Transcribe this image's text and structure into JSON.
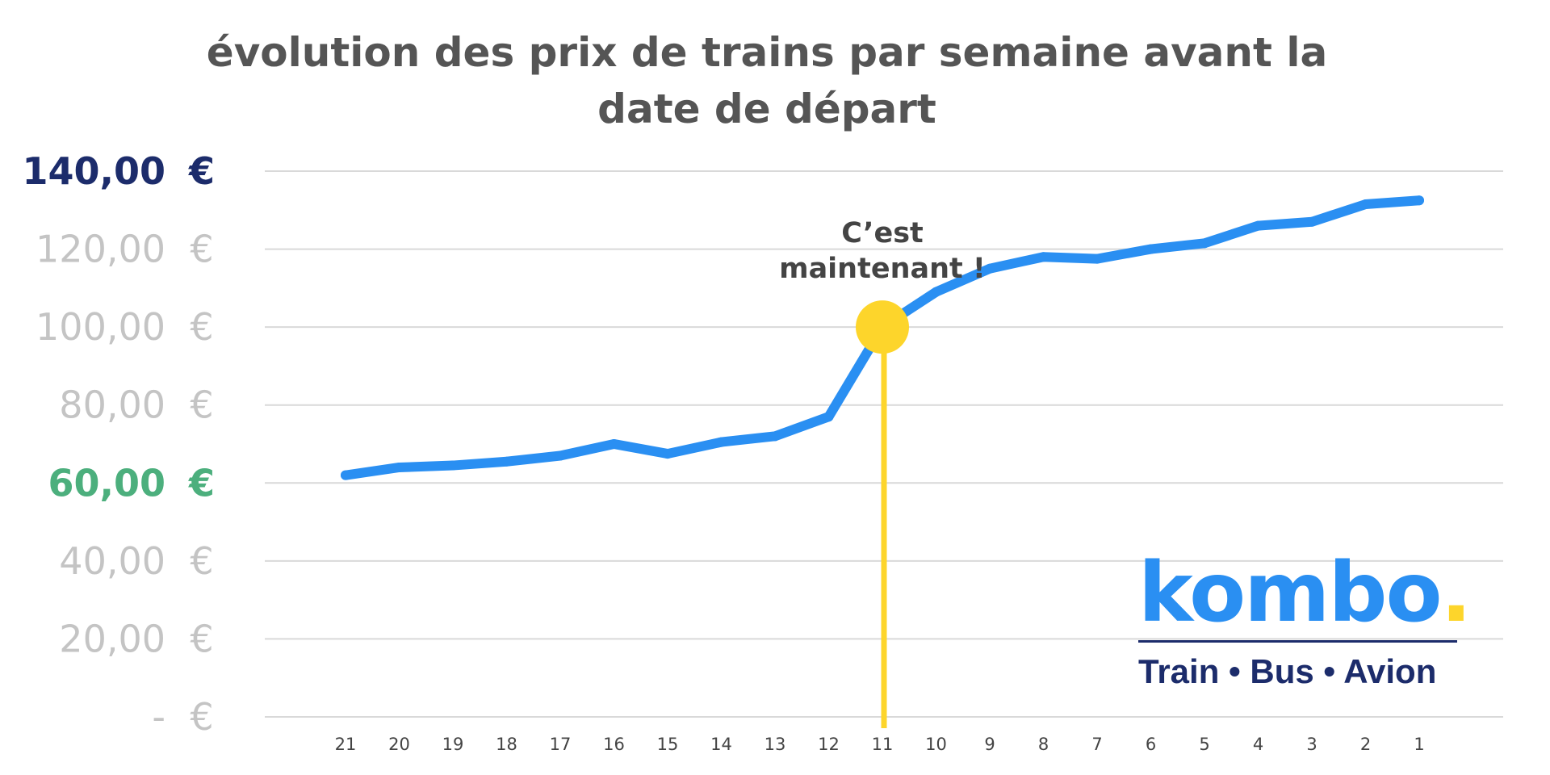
{
  "chart_data": {
    "type": "line",
    "title_lines": [
      "évolution des prix de trains par semaine avant la",
      "date de départ"
    ],
    "xlabel": "",
    "ylabel": "",
    "ylim": [
      0,
      140
    ],
    "grid": true,
    "y_ticks": [
      {
        "value": 140,
        "label": "140,00",
        "currency": "€",
        "color": "#1c2c6b",
        "bold": true
      },
      {
        "value": 120,
        "label": "120,00",
        "currency": "€",
        "color": "#c4c4c4",
        "bold": false
      },
      {
        "value": 100,
        "label": "100,00",
        "currency": "€",
        "color": "#c4c4c4",
        "bold": false
      },
      {
        "value": 80,
        "label": "80,00",
        "currency": "€",
        "color": "#c4c4c4",
        "bold": false
      },
      {
        "value": 60,
        "label": "60,00",
        "currency": "€",
        "color": "#4caf7d",
        "bold": true
      },
      {
        "value": 40,
        "label": "40,00",
        "currency": "€",
        "color": "#c4c4c4",
        "bold": false
      },
      {
        "value": 20,
        "label": "20,00",
        "currency": "€",
        "color": "#c4c4c4",
        "bold": false
      },
      {
        "value": 0,
        "label": "-",
        "currency": "€",
        "color": "#c4c4c4",
        "bold": false
      }
    ],
    "categories": [
      "21",
      "20",
      "19",
      "18",
      "17",
      "16",
      "15",
      "14",
      "13",
      "12",
      "11",
      "10",
      "9",
      "8",
      "7",
      "6",
      "5",
      "4",
      "3",
      "2",
      "1"
    ],
    "series": [
      {
        "color": "#2a8ff2",
        "values": [
          62,
          64,
          64.5,
          65.5,
          67,
          70,
          67.5,
          70.5,
          72,
          77,
          100,
          109,
          115,
          118,
          117.5,
          120,
          121.5,
          126,
          127,
          131.5,
          132.5
        ]
      }
    ],
    "highlight": {
      "category": "11",
      "value": 100,
      "marker_color": "#fdd52b",
      "line_color": "#fdd52b",
      "annotation_lines": [
        "C’est",
        "maintenant !"
      ]
    }
  },
  "logo": {
    "word": "kombo",
    "dot": ".",
    "tagline": "Train • Bus • Avion",
    "brand_color": "#2a8ff2",
    "dot_color": "#fdd52b",
    "tagline_color": "#1c2c6b"
  }
}
